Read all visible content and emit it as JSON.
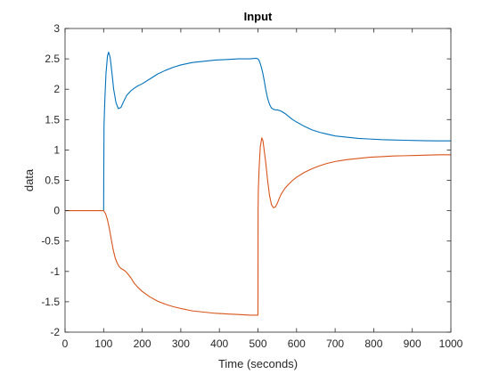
{
  "chart_data": {
    "type": "line",
    "title": "Input",
    "xlabel": "Time (seconds)",
    "ylabel": "data",
    "xlim": [
      0,
      1000
    ],
    "ylim": [
      -2,
      3
    ],
    "xticks": [
      "0",
      "100",
      "200",
      "300",
      "400",
      "500",
      "600",
      "700",
      "800",
      "900",
      "1000"
    ],
    "yticks": [
      "-2",
      "-1.5",
      "-1",
      "-0.5",
      "0",
      "0.5",
      "1",
      "1.5",
      "2",
      "2.5",
      "3"
    ],
    "grid": false,
    "legend": "none",
    "series": [
      {
        "color": "#0072BD",
        "x": [
          100,
          100.5,
          101,
          103,
          106,
          110,
          113,
          117,
          121,
          126,
          132,
          138,
          145,
          152,
          160,
          170,
          180,
          190,
          200,
          220,
          240,
          260,
          280,
          300,
          330,
          360,
          390,
          420,
          450,
          480,
          495,
          500,
          504,
          508,
          512,
          516,
          520,
          525,
          530,
          535,
          540,
          545,
          550,
          555,
          560,
          570,
          580,
          590,
          600,
          620,
          640,
          660,
          680,
          700,
          730,
          760,
          790,
          820,
          850,
          880,
          910,
          940,
          970,
          1000
        ],
        "y": [
          0,
          0.8,
          1.4,
          1.8,
          2.25,
          2.55,
          2.61,
          2.52,
          2.3,
          2.0,
          1.78,
          1.68,
          1.7,
          1.8,
          1.9,
          1.97,
          2.02,
          2.06,
          2.09,
          2.17,
          2.25,
          2.31,
          2.36,
          2.4,
          2.44,
          2.46,
          2.48,
          2.49,
          2.5,
          2.5,
          2.51,
          2.5,
          2.46,
          2.38,
          2.28,
          2.15,
          2.0,
          1.85,
          1.75,
          1.69,
          1.67,
          1.66,
          1.66,
          1.65,
          1.64,
          1.6,
          1.55,
          1.5,
          1.46,
          1.39,
          1.33,
          1.29,
          1.26,
          1.23,
          1.21,
          1.19,
          1.18,
          1.17,
          1.165,
          1.16,
          1.155,
          1.152,
          1.15,
          1.15
        ]
      },
      {
        "color": "#D95319",
        "x": [
          0,
          50,
          100,
          105,
          110,
          115,
          120,
          125,
          130,
          135,
          140,
          145,
          150,
          155,
          160,
          165,
          170,
          175,
          180,
          190,
          200,
          220,
          240,
          260,
          280,
          300,
          330,
          360,
          390,
          420,
          450,
          480,
          500,
          500.3,
          500.7,
          501,
          503,
          506,
          510,
          513,
          516,
          520,
          525,
          530,
          535,
          540,
          545,
          550,
          555,
          560,
          570,
          580,
          590,
          600,
          620,
          640,
          660,
          680,
          700,
          730,
          760,
          790,
          820,
          850,
          880,
          910,
          940,
          970,
          1000
        ],
        "y": [
          0,
          0,
          0,
          -0.05,
          -0.15,
          -0.3,
          -0.48,
          -0.65,
          -0.78,
          -0.86,
          -0.92,
          -0.95,
          -0.97,
          -0.99,
          -1.02,
          -1.06,
          -1.1,
          -1.15,
          -1.2,
          -1.27,
          -1.33,
          -1.42,
          -1.49,
          -1.54,
          -1.58,
          -1.61,
          -1.65,
          -1.67,
          -1.69,
          -1.7,
          -1.71,
          -1.72,
          -1.72,
          0,
          0.2,
          0.35,
          0.7,
          1.05,
          1.2,
          1.15,
          1.0,
          0.8,
          0.5,
          0.25,
          0.1,
          0.05,
          0.06,
          0.12,
          0.2,
          0.27,
          0.37,
          0.44,
          0.5,
          0.55,
          0.63,
          0.69,
          0.74,
          0.78,
          0.81,
          0.84,
          0.86,
          0.88,
          0.89,
          0.9,
          0.905,
          0.91,
          0.915,
          0.92,
          0.92
        ]
      }
    ]
  }
}
